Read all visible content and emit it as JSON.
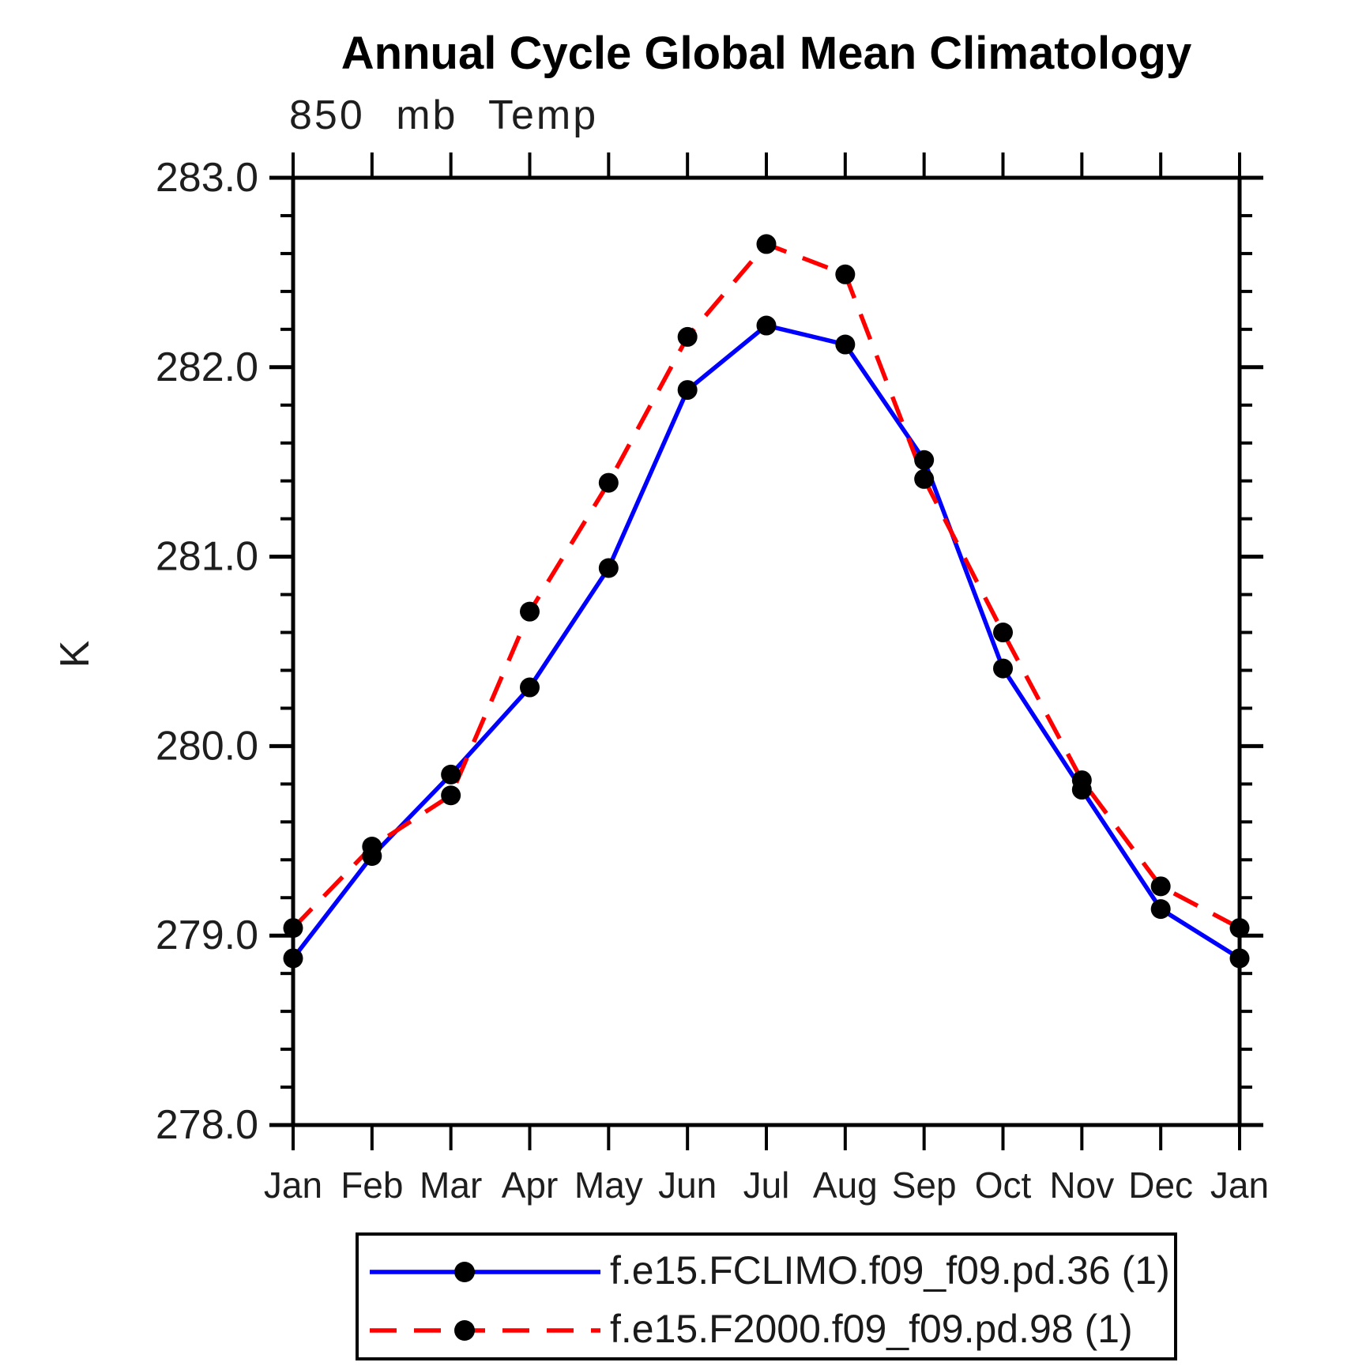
{
  "chart_data": {
    "type": "line",
    "title": "Annual Cycle Global Mean Climatology",
    "subtitle": "850 mb Temp",
    "ylabel": "K",
    "xlabel": "",
    "x_categories": [
      "Jan",
      "Feb",
      "Mar",
      "Apr",
      "May",
      "Jun",
      "Jul",
      "Aug",
      "Sep",
      "Oct",
      "Nov",
      "Dec",
      "Jan"
    ],
    "ylim": [
      278.0,
      283.0
    ],
    "ytick_major_step": 1.0,
    "ytick_minor_step": 0.2,
    "ytick_labels": [
      "278.0",
      "279.0",
      "280.0",
      "281.0",
      "282.0",
      "283.0"
    ],
    "grid": false,
    "legend_position": "bottom",
    "marker": {
      "shape": "circle",
      "color": "#000000"
    },
    "axis_color": "#000000",
    "series": [
      {
        "name": "f.e15.FCLIMO.f09_f09.pd.36 (1)",
        "color": "#0000ff",
        "style": "solid",
        "values": [
          278.88,
          279.42,
          279.85,
          280.31,
          280.94,
          281.88,
          282.22,
          282.12,
          281.51,
          280.41,
          279.77,
          279.14,
          278.88
        ]
      },
      {
        "name": "f.e15.F2000.f09_f09.pd.98 (1)",
        "color": "#ff0000",
        "style": "dashed",
        "values": [
          279.04,
          279.47,
          279.74,
          280.71,
          281.39,
          282.16,
          282.65,
          282.49,
          281.41,
          280.6,
          279.82,
          279.26,
          279.04
        ]
      }
    ]
  }
}
